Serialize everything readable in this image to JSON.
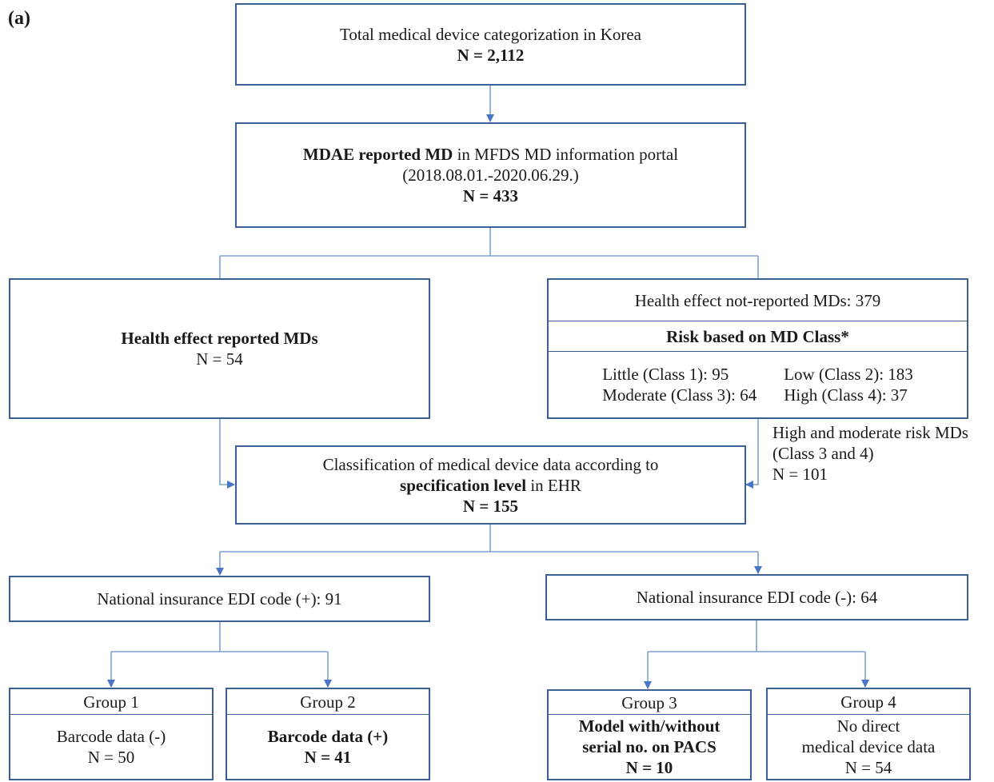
{
  "panel_label": "(a)",
  "top": {
    "title": "Total medical device categorization in Korea",
    "count": "N = 2,112"
  },
  "mdae": {
    "bold_part": "MDAE reported MD",
    "rest": " in MFDS MD information portal",
    "period": "(2018.08.01.-2020.06.29.)",
    "count": "N = 433"
  },
  "health_reported": {
    "title": "Health effect reported MDs",
    "count": "N = 54"
  },
  "not_reported": {
    "title": "Health effect not-reported MDs: 379",
    "risk_header": "Risk based on MD Class*",
    "classes": [
      "Little (Class 1): 95",
      "Low (Class 2): 183",
      "Moderate (Class 3):  64",
      "High (Class 4):  37"
    ]
  },
  "side_note": {
    "line1": "High and moderate risk MDs",
    "line2": "(Class 3 and 4)",
    "line3": "N = 101"
  },
  "classification": {
    "line1": "Classification of medical device data according to",
    "bold_part": "specification level",
    "rest": " in EHR",
    "count": "N = 155"
  },
  "edi_pos": {
    "label": "National insurance EDI code (+): 91"
  },
  "edi_neg": {
    "label": "National insurance EDI code (-): 64"
  },
  "groups": [
    {
      "name": "Group 1",
      "lines": [
        "Barcode data (-)"
      ],
      "count": "N = 50"
    },
    {
      "name": "Group 2",
      "lines": [
        "Barcode data (+)"
      ],
      "count": "N = 41"
    },
    {
      "name": "Group 3",
      "lines": [
        "Model with/without",
        "serial no. on PACS"
      ],
      "count": "N = 10"
    },
    {
      "name": "Group 4",
      "lines": [
        "No direct",
        "medical device data"
      ],
      "count": "N = 54"
    }
  ],
  "colors": {
    "border": "#3b5f95",
    "arrow": "#4a74c4"
  }
}
